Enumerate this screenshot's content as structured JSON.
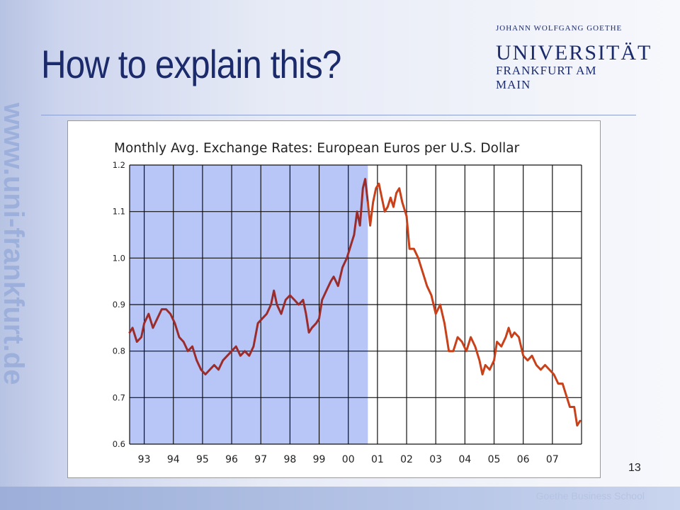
{
  "slide": {
    "title": "How to explain this?",
    "page_number": "13",
    "footer": "Goethe Business School",
    "side_url": "www.uni-frankfurt.de"
  },
  "logo": {
    "line1": "JOHANN WOLFGANG GOETHE",
    "line2": "UNIVERSITÄT",
    "line3": "FRANKFURT AM MAIN"
  },
  "colors": {
    "navy": "#1b2a6b",
    "highlight": "#b7c6f7",
    "line_before": "#9b2c2c",
    "line_after": "#c8411a"
  },
  "chart_data": {
    "type": "line",
    "title": "Monthly Avg. Exchange Rates: European Euros per U.S. Dollar",
    "xlabel": "",
    "ylabel": "",
    "ylim": [
      0.6,
      1.2
    ],
    "xlim": [
      1992.5,
      2008.0
    ],
    "y_ticks": [
      "0.6",
      "0.7",
      "0.8",
      "0.9",
      "1.0",
      "1.1",
      "1.2"
    ],
    "x_ticks": [
      "93",
      "94",
      "95",
      "96",
      "97",
      "98",
      "99",
      "00",
      "01",
      "02",
      "03",
      "04",
      "05",
      "06",
      "07"
    ],
    "grid": true,
    "highlight_region": [
      1992.5,
      2000.67
    ],
    "split_at": 2000.67,
    "series": [
      {
        "values": [
          [
            1992.5,
            0.84
          ],
          [
            1992.6,
            0.85
          ],
          [
            1992.75,
            0.82
          ],
          [
            1992.9,
            0.83
          ],
          [
            1993.0,
            0.86
          ],
          [
            1993.15,
            0.88
          ],
          [
            1993.3,
            0.85
          ],
          [
            1993.45,
            0.87
          ],
          [
            1993.6,
            0.89
          ],
          [
            1993.75,
            0.89
          ],
          [
            1993.9,
            0.88
          ],
          [
            1994.05,
            0.86
          ],
          [
            1994.2,
            0.83
          ],
          [
            1994.35,
            0.82
          ],
          [
            1994.5,
            0.8
          ],
          [
            1994.65,
            0.81
          ],
          [
            1994.8,
            0.78
          ],
          [
            1994.95,
            0.76
          ],
          [
            1995.1,
            0.75
          ],
          [
            1995.25,
            0.76
          ],
          [
            1995.4,
            0.77
          ],
          [
            1995.55,
            0.76
          ],
          [
            1995.7,
            0.78
          ],
          [
            1995.85,
            0.79
          ],
          [
            1996.0,
            0.8
          ],
          [
            1996.15,
            0.81
          ],
          [
            1996.3,
            0.79
          ],
          [
            1996.45,
            0.8
          ],
          [
            1996.6,
            0.79
          ],
          [
            1996.75,
            0.81
          ],
          [
            1996.9,
            0.86
          ],
          [
            1997.05,
            0.87
          ],
          [
            1997.2,
            0.88
          ],
          [
            1997.35,
            0.9
          ],
          [
            1997.45,
            0.93
          ],
          [
            1997.55,
            0.9
          ],
          [
            1997.7,
            0.88
          ],
          [
            1997.85,
            0.91
          ],
          [
            1998.0,
            0.92
          ],
          [
            1998.15,
            0.91
          ],
          [
            1998.3,
            0.9
          ],
          [
            1998.45,
            0.91
          ],
          [
            1998.55,
            0.88
          ],
          [
            1998.65,
            0.84
          ],
          [
            1998.75,
            0.85
          ],
          [
            1998.9,
            0.86
          ],
          [
            1999.0,
            0.87
          ],
          [
            1999.1,
            0.91
          ],
          [
            1999.25,
            0.93
          ],
          [
            1999.4,
            0.95
          ],
          [
            1999.5,
            0.96
          ],
          [
            1999.65,
            0.94
          ],
          [
            1999.8,
            0.98
          ],
          [
            1999.95,
            1.0
          ],
          [
            2000.1,
            1.03
          ],
          [
            2000.2,
            1.05
          ],
          [
            2000.3,
            1.1
          ],
          [
            2000.4,
            1.07
          ],
          [
            2000.5,
            1.15
          ],
          [
            2000.58,
            1.17
          ],
          [
            2000.67,
            1.12
          ]
        ]
      },
      {
        "values": [
          [
            2000.67,
            1.12
          ],
          [
            2000.75,
            1.07
          ],
          [
            2000.85,
            1.12
          ],
          [
            2000.95,
            1.15
          ],
          [
            2001.05,
            1.16
          ],
          [
            2001.15,
            1.13
          ],
          [
            2001.25,
            1.1
          ],
          [
            2001.35,
            1.11
          ],
          [
            2001.45,
            1.13
          ],
          [
            2001.55,
            1.11
          ],
          [
            2001.65,
            1.14
          ],
          [
            2001.75,
            1.15
          ],
          [
            2001.85,
            1.12
          ],
          [
            2002.0,
            1.09
          ],
          [
            2002.1,
            1.02
          ],
          [
            2002.25,
            1.02
          ],
          [
            2002.4,
            1.0
          ],
          [
            2002.5,
            0.98
          ],
          [
            2002.6,
            0.96
          ],
          [
            2002.7,
            0.94
          ],
          [
            2002.85,
            0.92
          ],
          [
            2003.0,
            0.88
          ],
          [
            2003.15,
            0.9
          ],
          [
            2003.3,
            0.86
          ],
          [
            2003.45,
            0.8
          ],
          [
            2003.6,
            0.8
          ],
          [
            2003.75,
            0.83
          ],
          [
            2003.9,
            0.82
          ],
          [
            2004.05,
            0.8
          ],
          [
            2004.2,
            0.83
          ],
          [
            2004.35,
            0.81
          ],
          [
            2004.5,
            0.78
          ],
          [
            2004.6,
            0.75
          ],
          [
            2004.7,
            0.77
          ],
          [
            2004.85,
            0.76
          ],
          [
            2005.0,
            0.78
          ],
          [
            2005.1,
            0.82
          ],
          [
            2005.25,
            0.81
          ],
          [
            2005.4,
            0.83
          ],
          [
            2005.5,
            0.85
          ],
          [
            2005.6,
            0.83
          ],
          [
            2005.7,
            0.84
          ],
          [
            2005.85,
            0.83
          ],
          [
            2006.0,
            0.79
          ],
          [
            2006.15,
            0.78
          ],
          [
            2006.3,
            0.79
          ],
          [
            2006.45,
            0.77
          ],
          [
            2006.6,
            0.76
          ],
          [
            2006.75,
            0.77
          ],
          [
            2006.9,
            0.76
          ],
          [
            2007.05,
            0.75
          ],
          [
            2007.2,
            0.73
          ],
          [
            2007.35,
            0.73
          ],
          [
            2007.5,
            0.7
          ],
          [
            2007.6,
            0.68
          ],
          [
            2007.75,
            0.68
          ],
          [
            2007.85,
            0.64
          ],
          [
            2007.95,
            0.65
          ]
        ]
      }
    ]
  }
}
